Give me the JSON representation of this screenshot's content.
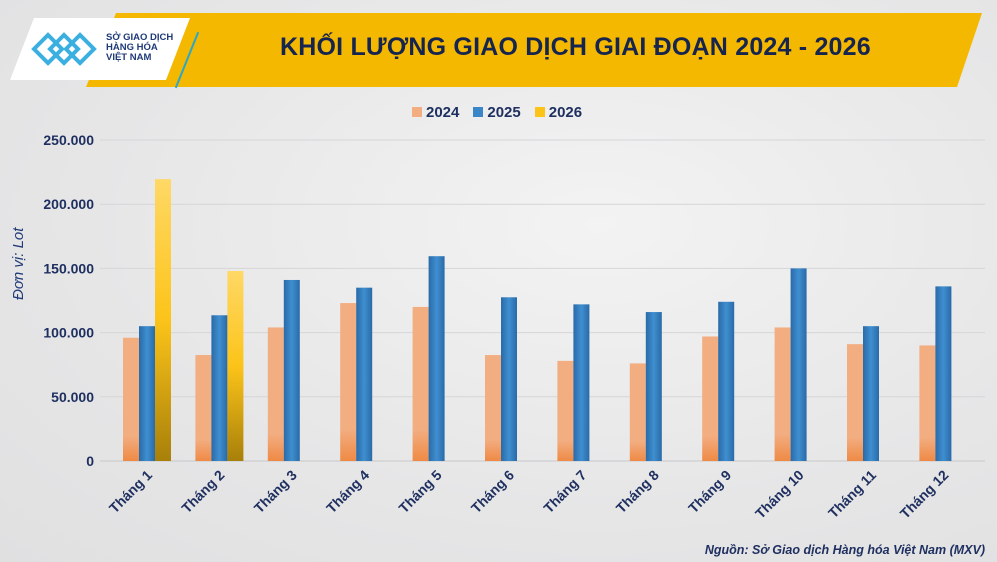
{
  "logo": {
    "lines": [
      "SỞ GIAO DỊCH",
      "HÀNG HÓA",
      "VIỆT NAM"
    ]
  },
  "chart_data": {
    "type": "bar",
    "title": "KHỐI LƯỢNG GIAO DỊCH GIAI ĐOẠN 2024  - 2026",
    "ylabel": "Đơn vị: Lot",
    "xlabel": "",
    "ylim": [
      0,
      250000
    ],
    "yticks": [
      "0",
      "50.000",
      "100.000",
      "150.000",
      "200.000",
      "250.000"
    ],
    "ytick_values": [
      0,
      50000,
      100000,
      150000,
      200000,
      250000
    ],
    "grid": true,
    "legend_position": "top-center",
    "categories": [
      "Tháng 1",
      "Tháng 2",
      "Tháng 3",
      "Tháng 4",
      "Tháng 5",
      "Tháng 6",
      "Tháng 7",
      "Tháng 8",
      "Tháng 9",
      "Tháng 10",
      "Tháng 11",
      "Tháng 12"
    ],
    "series": [
      {
        "name": "2024",
        "color": "#f2ad80",
        "values": [
          96000,
          82500,
          104000,
          123000,
          120000,
          82500,
          78000,
          76000,
          97000,
          104000,
          91000,
          90000
        ]
      },
      {
        "name": "2025",
        "color": "#3a86c8",
        "values": [
          105000,
          113500,
          141000,
          135000,
          159500,
          127500,
          122000,
          116000,
          124000,
          150000,
          105000,
          136000
        ]
      },
      {
        "name": "2026",
        "color": "#fcc419",
        "values": [
          219500,
          148000,
          null,
          null,
          null,
          null,
          null,
          null,
          null,
          null,
          null,
          null
        ]
      }
    ],
    "source": "Nguồn: Sở Giao dịch Hàng hóa Việt Nam (MXV)"
  }
}
